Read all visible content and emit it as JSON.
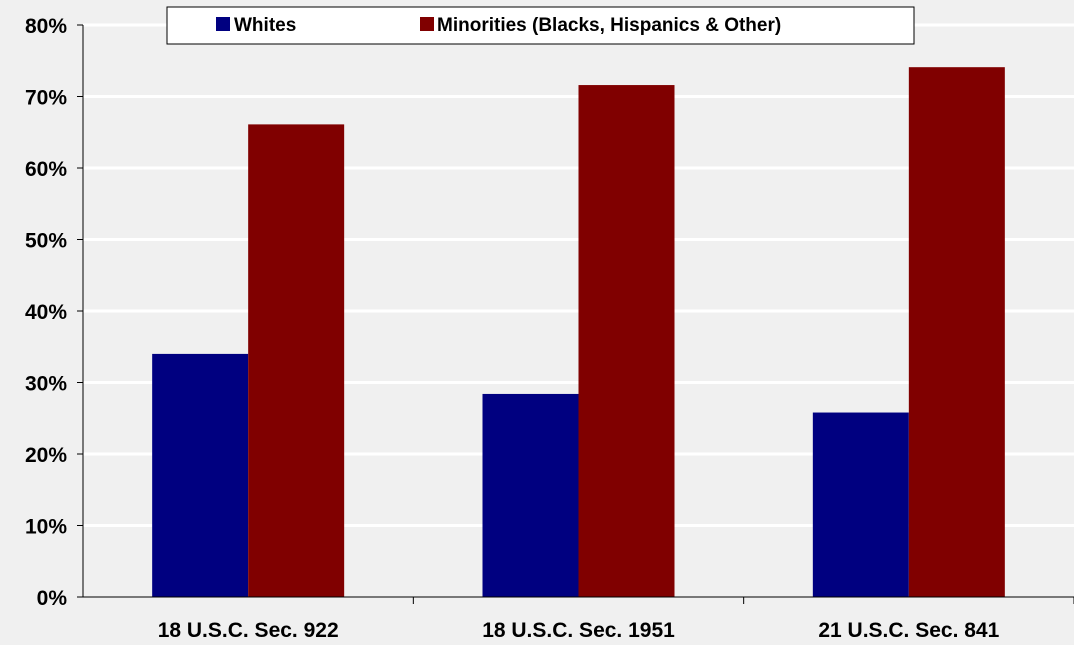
{
  "chart_data": {
    "type": "bar",
    "categories": [
      "18 U.S.C. Sec. 922",
      "18 U.S.C. Sec. 1951",
      "21 U.S.C. Sec. 841"
    ],
    "series": [
      {
        "name": "Whites",
        "values": [
          34,
          28.4,
          25.8
        ]
      },
      {
        "name": "Minorities (Blacks, Hispanics & Other)",
        "values": [
          66.1,
          71.6,
          74.1
        ]
      }
    ],
    "ylim": [
      0,
      80
    ],
    "yticks": [
      "0%",
      "10%",
      "20%",
      "30%",
      "40%",
      "50%",
      "60%",
      "70%",
      "80%"
    ],
    "grid": true,
    "legend_position": "top"
  },
  "colors": {
    "background": "#f0f0f0",
    "grid": "#ffffff",
    "series": [
      "#000080",
      "#800000"
    ]
  }
}
